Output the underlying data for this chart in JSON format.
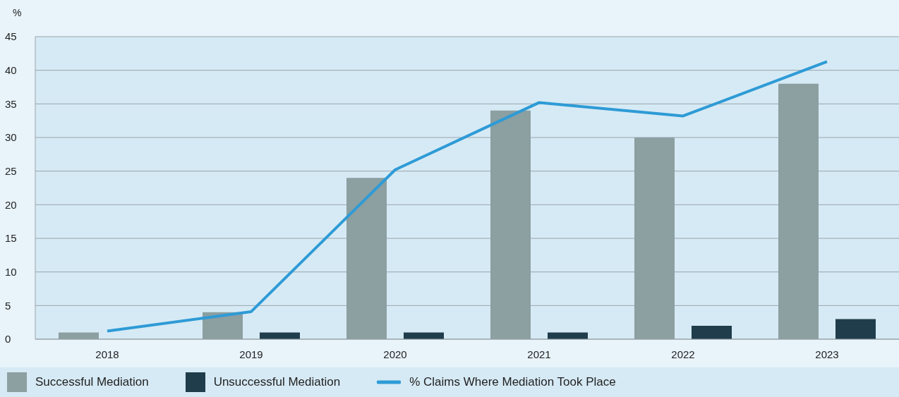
{
  "chart_data": {
    "type": "bar",
    "ylabel": "%",
    "categories": [
      "2018",
      "2019",
      "2020",
      "2021",
      "2022",
      "2023"
    ],
    "series": [
      {
        "name": "Successful Mediation",
        "color": "#8c9fa1",
        "values": [
          1,
          4,
          24,
          34,
          30,
          38
        ]
      },
      {
        "name": "Unsuccessful Mediation",
        "color": "#1f3d4a",
        "values": [
          0,
          1,
          1,
          1,
          2,
          3
        ]
      },
      {
        "name": "% Claims Where Mediation Took Place",
        "type": "line",
        "color": "#2e9bd6",
        "values": [
          1.2,
          4.1,
          25.2,
          35.2,
          33.2,
          41.3
        ]
      }
    ],
    "ylim": [
      0,
      45
    ],
    "yticks": [
      0,
      5,
      10,
      15,
      20,
      25,
      30,
      35,
      40,
      45
    ],
    "grid": "y",
    "legend": "bottom",
    "marker": "none",
    "line_style": "solid"
  }
}
